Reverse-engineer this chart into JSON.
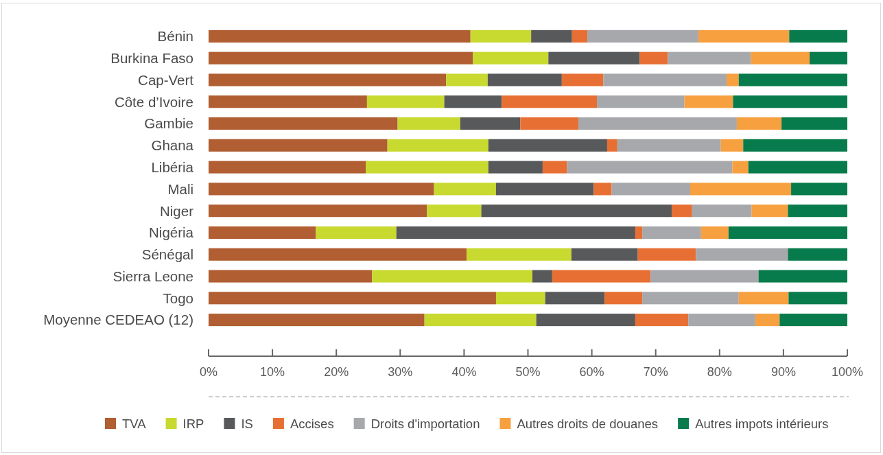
{
  "chart_data": {
    "type": "bar",
    "orientation": "horizontal",
    "stacked": true,
    "categories": [
      "Bénin",
      "Burkina Faso",
      "Cap-Vert",
      "Côte d’Ivoire",
      "Gambie",
      "Ghana",
      "Libéria",
      "Mali",
      "Niger",
      "Nigéria",
      "Sénégal",
      "Sierra Leone",
      "Togo",
      "Moyenne CEDEAO (12)"
    ],
    "series": [
      {
        "name": "TVA",
        "color": "#b05e32",
        "values": [
          41.0,
          41.4,
          37.2,
          24.8,
          29.6,
          28.0,
          24.6,
          35.3,
          34.2,
          16.8,
          40.4,
          25.6,
          45.0,
          33.8
        ]
      },
      {
        "name": "IRP",
        "color": "#c8d92f",
        "values": [
          9.5,
          11.8,
          6.5,
          12.1,
          9.8,
          15.8,
          19.2,
          9.7,
          8.5,
          12.6,
          16.4,
          25.1,
          7.7,
          17.5
        ]
      },
      {
        "name": "IS",
        "color": "#58595b",
        "values": [
          6.4,
          14.3,
          11.6,
          9.0,
          9.4,
          18.6,
          8.5,
          15.3,
          29.8,
          37.4,
          10.4,
          3.1,
          9.3,
          15.5
        ]
      },
      {
        "name": "Accises",
        "color": "#e86f33",
        "values": [
          2.4,
          4.4,
          6.5,
          14.9,
          9.1,
          1.6,
          3.8,
          2.8,
          3.2,
          1.1,
          9.1,
          15.4,
          5.9,
          8.3
        ]
      },
      {
        "name": "Droits d'importation",
        "color": "#a7a8ab",
        "values": [
          17.4,
          13.0,
          19.3,
          13.7,
          24.8,
          16.2,
          25.9,
          12.3,
          9.3,
          9.2,
          14.4,
          16.9,
          15.1,
          10.5
        ]
      },
      {
        "name": "Autres droits de douanes",
        "color": "#f7a040",
        "values": [
          14.2,
          9.2,
          1.9,
          7.6,
          7.0,
          3.5,
          2.5,
          15.8,
          5.7,
          4.3,
          null,
          null,
          7.8,
          3.8
        ]
      },
      {
        "name": "Autres impots intérieurs",
        "color": "#077b4b",
        "values": [
          9.1,
          5.9,
          17.0,
          17.9,
          10.3,
          16.3,
          15.5,
          8.8,
          9.3,
          18.6,
          9.3,
          13.9,
          9.2,
          10.6
        ]
      }
    ],
    "xlim": [
      0,
      100
    ],
    "xticks": [
      {
        "value": 0,
        "label": "0%"
      },
      {
        "value": 10,
        "label": "10%"
      },
      {
        "value": 20,
        "label": "20%"
      },
      {
        "value": 30,
        "label": "30%"
      },
      {
        "value": 40,
        "label": "40%"
      },
      {
        "value": 50,
        "label": "50%"
      },
      {
        "value": 60,
        "label": "60%"
      },
      {
        "value": 70,
        "label": "70%"
      },
      {
        "value": 80,
        "label": "80%"
      },
      {
        "value": 90,
        "label": "90%"
      },
      {
        "value": 100,
        "label": "100%"
      }
    ],
    "legend": "bottom"
  }
}
